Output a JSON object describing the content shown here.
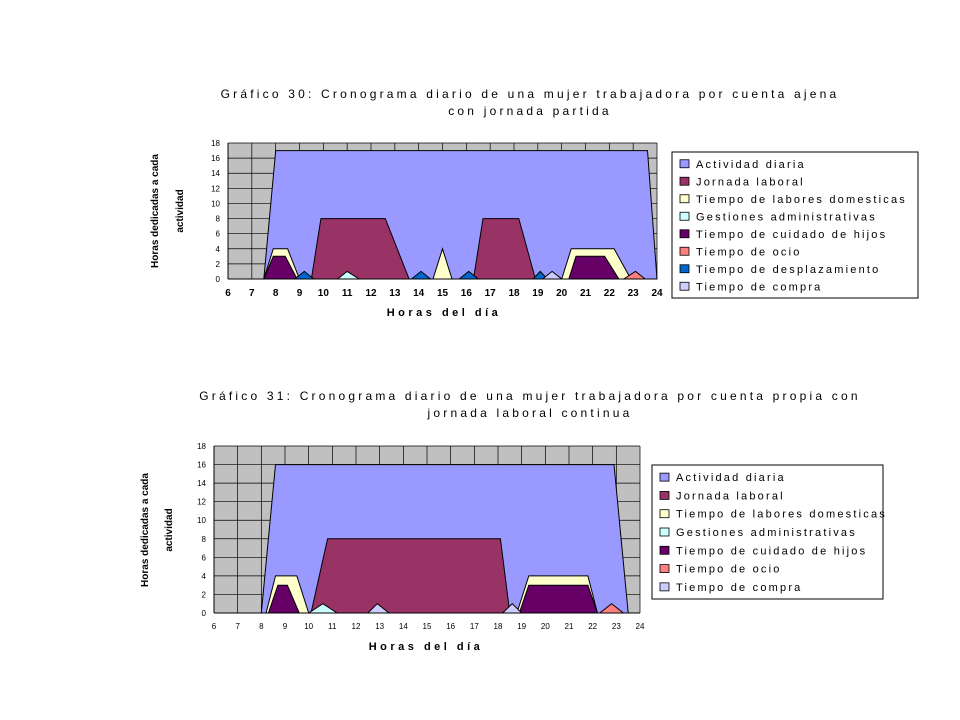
{
  "chart_data": [
    {
      "type": "area",
      "title": "Gráfico 30: Cronograma diario de una mujer trabajadora por cuenta ajena",
      "subtitle": "con jornada partida",
      "xlabel": "Horas del día",
      "ylabel": "Horas dedicadas a cada actividad",
      "ylim": [
        0,
        18
      ],
      "yticks": [
        0,
        2,
        4,
        6,
        8,
        10,
        12,
        14,
        16,
        18
      ],
      "xlim": [
        6,
        24
      ],
      "xticks": [
        6,
        7,
        8,
        9,
        10,
        11,
        12,
        13,
        14,
        15,
        16,
        17,
        18,
        19,
        20,
        21,
        22,
        23,
        24
      ],
      "grid": true,
      "legend_position": "right",
      "series": [
        {
          "name": "Actividad diaria",
          "color": "#9999ff",
          "points": [
            [
              7.5,
              0
            ],
            [
              8,
              17
            ],
            [
              23.6,
              17
            ],
            [
              24,
              0
            ]
          ]
        },
        {
          "name": "Jornada laboral",
          "color": "#993366",
          "points": [
            [
              9.5,
              0
            ],
            [
              9.9,
              8
            ],
            [
              12.6,
              8
            ],
            [
              13.6,
              0
            ],
            [
              16.3,
              0
            ],
            [
              16.7,
              8
            ],
            [
              18.2,
              8
            ],
            [
              18.9,
              0
            ]
          ]
        },
        {
          "name": "Tiempo de labores domesticas",
          "color": "#ffffcc",
          "points": [
            [
              7.5,
              0
            ],
            [
              7.9,
              4
            ],
            [
              8.5,
              4
            ],
            [
              9.0,
              0
            ],
            [
              14.6,
              0
            ],
            [
              15.0,
              4
            ],
            [
              15.4,
              0
            ],
            [
              20.0,
              0
            ],
            [
              20.4,
              4
            ],
            [
              22.2,
              4
            ],
            [
              22.9,
              0
            ]
          ]
        },
        {
          "name": "Gestiones administrativas",
          "color": "#ccffff",
          "points": [
            [
              10.6,
              0
            ],
            [
              11.0,
              1
            ],
            [
              11.5,
              0
            ]
          ]
        },
        {
          "name": "Tiempo de cuidado de hijos",
          "color": "#660066",
          "points": [
            [
              7.5,
              0
            ],
            [
              7.9,
              3
            ],
            [
              8.4,
              3
            ],
            [
              8.9,
              0
            ],
            [
              20.3,
              0
            ],
            [
              20.6,
              3
            ],
            [
              21.8,
              3
            ],
            [
              22.4,
              0
            ]
          ]
        },
        {
          "name": "Tiempo de ocio",
          "color": "#ff8080",
          "points": [
            [
              22.6,
              0
            ],
            [
              23.1,
              1
            ],
            [
              23.5,
              0
            ]
          ]
        },
        {
          "name": "Tiempo de desplazamiento",
          "color": "#0066cc",
          "points": [
            [
              8.8,
              0
            ],
            [
              9.2,
              1
            ],
            [
              9.6,
              0
            ],
            [
              13.7,
              0
            ],
            [
              14.1,
              1
            ],
            [
              14.5,
              0
            ],
            [
              15.7,
              0
            ],
            [
              16.1,
              1
            ],
            [
              16.5,
              0
            ],
            [
              18.8,
              0
            ],
            [
              19.1,
              1
            ],
            [
              19.4,
              0
            ]
          ]
        },
        {
          "name": "Tiempo de compra",
          "color": "#ccccff",
          "points": [
            [
              19.2,
              0
            ],
            [
              19.6,
              1
            ],
            [
              20.0,
              0
            ]
          ]
        }
      ]
    },
    {
      "type": "area",
      "title": "Gráfico 31: Cronograma diario de una mujer trabajadora por cuenta propia con",
      "subtitle": "jornada laboral continua",
      "xlabel": "Horas del día",
      "ylabel": "Horas dedicadas a cada actividad",
      "ylim": [
        0,
        18
      ],
      "yticks": [
        0,
        2,
        4,
        6,
        8,
        10,
        12,
        14,
        16,
        18
      ],
      "xlim": [
        6,
        24
      ],
      "xticks": [
        6,
        7,
        8,
        9,
        10,
        11,
        12,
        13,
        14,
        15,
        16,
        17,
        18,
        19,
        20,
        21,
        22,
        23,
        24
      ],
      "grid": true,
      "legend_position": "right",
      "series": [
        {
          "name": "Actividad diaria",
          "color": "#9999ff",
          "points": [
            [
              8.0,
              0
            ],
            [
              8.6,
              16
            ],
            [
              22.9,
              16
            ],
            [
              23.5,
              0
            ]
          ]
        },
        {
          "name": "Jornada laboral",
          "color": "#993366",
          "points": [
            [
              10.1,
              0
            ],
            [
              10.8,
              8
            ],
            [
              18.1,
              8
            ],
            [
              18.5,
              0
            ]
          ]
        },
        {
          "name": "Tiempo de labores domesticas",
          "color": "#ffffcc",
          "points": [
            [
              8.2,
              0
            ],
            [
              8.6,
              4
            ],
            [
              9.5,
              4
            ],
            [
              10.0,
              0
            ],
            [
              18.8,
              0
            ],
            [
              19.3,
              4
            ],
            [
              21.8,
              4
            ],
            [
              22.2,
              0
            ]
          ]
        },
        {
          "name": "Gestiones administrativas",
          "color": "#ccffff",
          "points": [
            [
              10.0,
              0
            ],
            [
              10.6,
              1
            ],
            [
              11.2,
              0
            ]
          ]
        },
        {
          "name": "Tiempo de cuidado de hijos",
          "color": "#660066",
          "points": [
            [
              8.3,
              0
            ],
            [
              8.7,
              3
            ],
            [
              9.1,
              3
            ],
            [
              9.6,
              0
            ],
            [
              18.9,
              0
            ],
            [
              19.3,
              3
            ],
            [
              21.8,
              3
            ],
            [
              22.2,
              0
            ]
          ]
        },
        {
          "name": "Tiempo de ocio",
          "color": "#ff8080",
          "points": [
            [
              22.3,
              0
            ],
            [
              22.8,
              1
            ],
            [
              23.3,
              0
            ]
          ]
        },
        {
          "name": "Tiempo de compra",
          "color": "#ccccff",
          "points": [
            [
              12.5,
              0
            ],
            [
              12.9,
              1
            ],
            [
              13.4,
              0
            ],
            [
              18.2,
              0
            ],
            [
              18.6,
              1
            ],
            [
              19.0,
              0
            ]
          ]
        }
      ]
    }
  ]
}
